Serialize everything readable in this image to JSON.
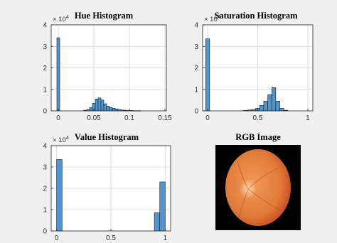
{
  "figure": {
    "background": "#f0f0f0",
    "axes_background": "#ffffff",
    "bar_color": "#4f95d0",
    "bar_edge": "#1a1a1a",
    "grid_color": "#dcdcdc"
  },
  "rgb_image": {
    "title": "RGB Image",
    "colors": {
      "background": "#000000",
      "fundus_outer": "#c9461e",
      "fundus_inner": "#f29a58",
      "optic_disc": "#ffd9a8"
    }
  },
  "chart_data": [
    {
      "type": "bar",
      "title": "Hue Histogram",
      "y_exponent": "× 10^4",
      "xlim": [
        -0.01,
        0.152
      ],
      "ylim": [
        0,
        4
      ],
      "xticks": [
        0,
        0.05,
        0.1,
        0.15
      ],
      "xtick_labels": [
        "0",
        "0.05",
        "0.1",
        "0.15"
      ],
      "yticks": [
        0,
        1,
        2,
        3,
        4
      ],
      "ytick_labels": [
        "0",
        "1",
        "2",
        "3",
        "4"
      ],
      "bin_width": 0.004,
      "grid": true,
      "bins": [
        {
          "x": 0.0,
          "y": 3.4
        },
        {
          "x": 0.038,
          "y": 0.03
        },
        {
          "x": 0.042,
          "y": 0.06
        },
        {
          "x": 0.046,
          "y": 0.15
        },
        {
          "x": 0.05,
          "y": 0.35
        },
        {
          "x": 0.054,
          "y": 0.55
        },
        {
          "x": 0.058,
          "y": 0.6
        },
        {
          "x": 0.062,
          "y": 0.5
        },
        {
          "x": 0.066,
          "y": 0.33
        },
        {
          "x": 0.07,
          "y": 0.22
        },
        {
          "x": 0.074,
          "y": 0.16
        },
        {
          "x": 0.078,
          "y": 0.12
        },
        {
          "x": 0.082,
          "y": 0.09
        },
        {
          "x": 0.086,
          "y": 0.06
        },
        {
          "x": 0.09,
          "y": 0.04
        },
        {
          "x": 0.094,
          "y": 0.03
        },
        {
          "x": 0.098,
          "y": 0.02
        },
        {
          "x": 0.102,
          "y": 0.02
        },
        {
          "x": 0.106,
          "y": 0.01
        },
        {
          "x": 0.11,
          "y": 0.01
        },
        {
          "x": 0.114,
          "y": 0.01
        }
      ]
    },
    {
      "type": "bar",
      "title": "Saturation Histogram",
      "y_exponent": "× 10^4",
      "xlim": [
        -0.05,
        1.05
      ],
      "ylim": [
        0,
        4
      ],
      "xticks": [
        0,
        0.5,
        1
      ],
      "xtick_labels": [
        "0",
        "0.5",
        "1"
      ],
      "yticks": [
        0,
        1,
        2,
        3,
        4
      ],
      "ytick_labels": [
        "0",
        "1",
        "2",
        "3",
        "4"
      ],
      "bin_width": 0.04,
      "grid": true,
      "bins": [
        {
          "x": 0.0,
          "y": 3.35
        },
        {
          "x": 0.38,
          "y": 0.02
        },
        {
          "x": 0.42,
          "y": 0.04
        },
        {
          "x": 0.46,
          "y": 0.06
        },
        {
          "x": 0.5,
          "y": 0.12
        },
        {
          "x": 0.54,
          "y": 0.25
        },
        {
          "x": 0.58,
          "y": 0.45
        },
        {
          "x": 0.62,
          "y": 0.75
        },
        {
          "x": 0.66,
          "y": 1.08
        },
        {
          "x": 0.7,
          "y": 0.45
        },
        {
          "x": 0.74,
          "y": 0.12
        },
        {
          "x": 0.78,
          "y": 0.03
        }
      ]
    },
    {
      "type": "bar",
      "title": "Value Histogram",
      "y_exponent": "× 10^4",
      "xlim": [
        -0.05,
        1.05
      ],
      "ylim": [
        0,
        4
      ],
      "xticks": [
        0,
        0.5,
        1
      ],
      "xtick_labels": [
        "0",
        "0.5",
        "1"
      ],
      "yticks": [
        0,
        1,
        2,
        3,
        4
      ],
      "ytick_labels": [
        "0",
        "1",
        "2",
        "3",
        "4"
      ],
      "bin_width": 0.05,
      "grid": true,
      "bins": [
        {
          "x": 0.025,
          "y": 3.35
        },
        {
          "x": 0.925,
          "y": 0.85
        },
        {
          "x": 0.975,
          "y": 2.3
        }
      ]
    }
  ]
}
